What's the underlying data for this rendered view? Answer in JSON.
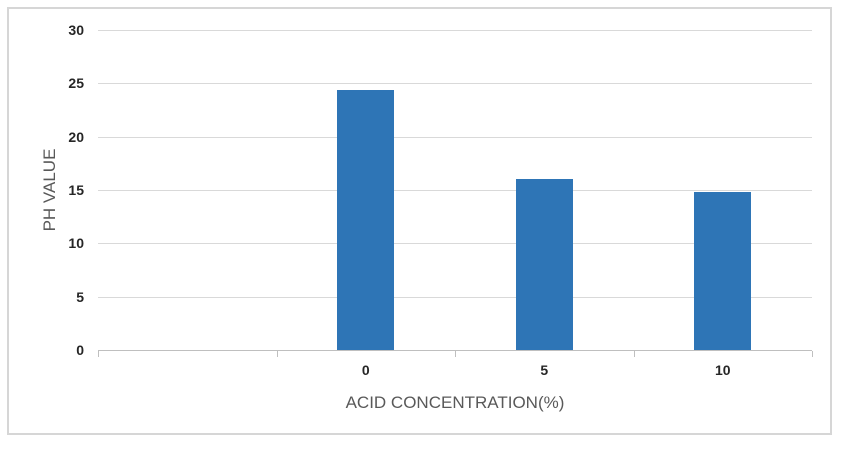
{
  "chart_data": {
    "type": "bar",
    "title": "",
    "categories": [
      "0",
      "5",
      "10"
    ],
    "values": [
      24.4,
      16,
      14.8
    ],
    "xlabel": "ACID CONCENTRATION(%)",
    "ylabel": "PH VALUE",
    "ylim": [
      0,
      30
    ],
    "yticks": [
      0,
      5,
      10,
      15,
      20,
      25,
      30
    ],
    "ytick_labels": [
      "0",
      "5",
      "10",
      "15",
      "20",
      "25",
      "30"
    ],
    "grid": "horizontal",
    "legend": "none",
    "layout": {
      "x_slot_count": 4,
      "leading_empty_slot": true
    }
  },
  "colors": {
    "bar": "#2e75b6",
    "gridline": "#d9d9d9",
    "axis_line": "#bfbfbf",
    "tick_label": "#262626",
    "axis_title": "#595959",
    "chart_border": "#d6d6d6",
    "background": "#ffffff"
  }
}
